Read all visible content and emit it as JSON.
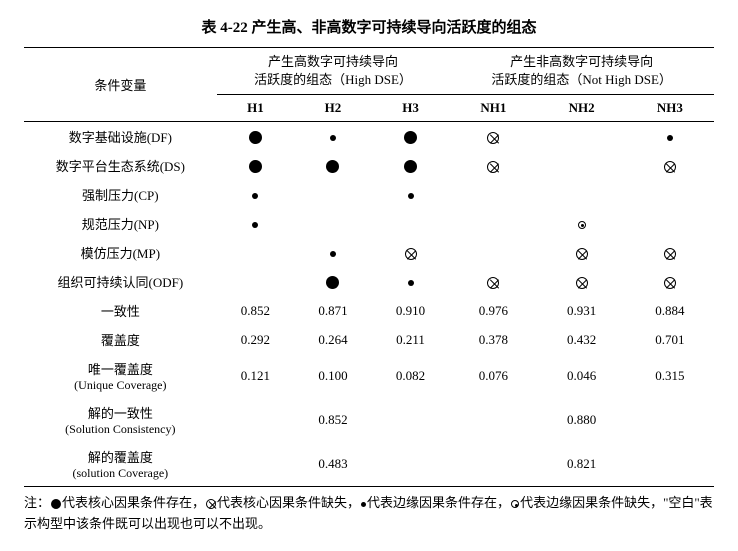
{
  "title": "表 4-22  产生高、非高数字可持续导向活跃度的组态",
  "header": {
    "condition_label": "条件变量",
    "group_high": {
      "line1": "产生高数字可持续导向",
      "line2": "活跃度的组态（High DSE）"
    },
    "group_nothigh": {
      "line1": "产生非高数字可持续导向",
      "line2": "活跃度的组态（Not High DSE）"
    },
    "cols": [
      "H1",
      "H2",
      "H3",
      "NH1",
      "NH2",
      "NH3"
    ]
  },
  "symbol_rows": [
    {
      "label": "数字基础设施(DF)",
      "cells": [
        "solid-big",
        "solid-small",
        "solid-big",
        "cross-big",
        "",
        "solid-small"
      ]
    },
    {
      "label": "数字平台生态系统(DS)",
      "cells": [
        "solid-big",
        "solid-big",
        "solid-big",
        "cross-big",
        "",
        "cross-big"
      ]
    },
    {
      "label": "强制压力(CP)",
      "cells": [
        "solid-small",
        "",
        "solid-small",
        "",
        "",
        ""
      ]
    },
    {
      "label": "规范压力(NP)",
      "cells": [
        "solid-small",
        "",
        "",
        "",
        "circle-dot",
        ""
      ]
    },
    {
      "label": "模仿压力(MP)",
      "cells": [
        "",
        "solid-small",
        "cross-big",
        "",
        "cross-big",
        "cross-big"
      ]
    },
    {
      "label": "组织可持续认同(ODF)",
      "cells": [
        "",
        "solid-big",
        "solid-small",
        "cross-big",
        "cross-big",
        "cross-big"
      ]
    }
  ],
  "numeric_rows": [
    {
      "label": "一致性",
      "sublabel": "",
      "cells": [
        "0.852",
        "0.871",
        "0.910",
        "0.976",
        "0.931",
        "0.884"
      ]
    },
    {
      "label": "覆盖度",
      "sublabel": "",
      "cells": [
        "0.292",
        "0.264",
        "0.211",
        "0.378",
        "0.432",
        "0.701"
      ]
    },
    {
      "label": "唯一覆盖度",
      "sublabel": "(Unique Coverage)",
      "cells": [
        "0.121",
        "0.100",
        "0.082",
        "0.076",
        "0.046",
        "0.315"
      ]
    }
  ],
  "merged_rows": [
    {
      "label": "解的一致性",
      "sublabel": "(Solution Consistency)",
      "value_high": "0.852",
      "value_nothigh": "0.880"
    },
    {
      "label": "解的覆盖度",
      "sublabel": "(solution Coverage)",
      "value_high": "0.483",
      "value_nothigh": "0.821"
    }
  ],
  "note": {
    "prefix": "注：",
    "t1": "代表核心因果条件存在，",
    "t2": "代表核心因果条件缺失，",
    "t3": "代表边缘因果条件存在，",
    "t4": "代表边缘因果条件缺失，\"空白\"表示构型中该条件既可以出现也可以不出现。"
  }
}
